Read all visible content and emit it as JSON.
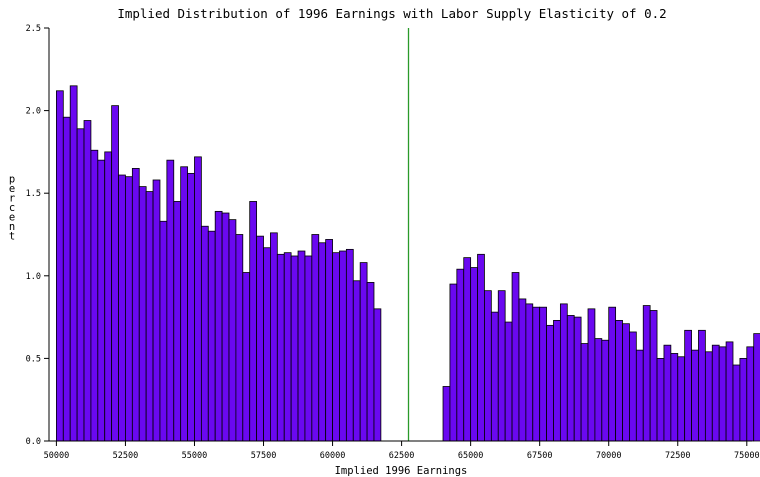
{
  "chart_data": {
    "type": "bar",
    "title": "Implied Distribution of 1996 Earnings with Labor Supply Elasticity of 0.2",
    "xlabel": "Implied 1996 Earnings",
    "ylabel": "percent",
    "xlim": [
      50000,
      75000
    ],
    "ylim": [
      0,
      2.5
    ],
    "bin_width": 250,
    "bin_start": 50000,
    "x_ticks": [
      "50000",
      "52500",
      "55000",
      "57500",
      "60000",
      "62500",
      "65000",
      "67500",
      "70000",
      "72500",
      "75000"
    ],
    "y_ticks": [
      "0.0",
      "0.5",
      "1.0",
      "1.5",
      "2.0",
      "2.5"
    ],
    "reference_line_x": 62750,
    "reference_line_color": "#2a9a2a",
    "bar_color": "#6a08f0",
    "values": [
      2.12,
      1.96,
      2.15,
      1.89,
      1.94,
      1.76,
      1.7,
      1.75,
      2.03,
      1.61,
      1.6,
      1.65,
      1.54,
      1.51,
      1.58,
      1.33,
      1.7,
      1.45,
      1.66,
      1.62,
      1.72,
      1.3,
      1.27,
      1.39,
      1.38,
      1.34,
      1.25,
      1.02,
      1.45,
      1.24,
      1.17,
      1.26,
      1.13,
      1.14,
      1.12,
      1.15,
      1.12,
      1.25,
      1.2,
      1.22,
      1.14,
      1.15,
      1.16,
      0.97,
      1.08,
      0.96,
      0.8,
      0,
      0,
      0,
      0,
      0,
      0,
      0,
      0,
      0,
      0.33,
      0.95,
      1.04,
      1.11,
      1.05,
      1.13,
      0.91,
      0.78,
      0.91,
      0.72,
      1.02,
      0.86,
      0.83,
      0.81,
      0.81,
      0.7,
      0.73,
      0.83,
      0.76,
      0.75,
      0.59,
      0.8,
      0.62,
      0.61,
      0.81,
      0.73,
      0.71,
      0.66,
      0.55,
      0.82,
      0.79,
      0.5,
      0.58,
      0.53,
      0.51,
      0.67,
      0.55,
      0.67,
      0.54,
      0.58,
      0.57,
      0.6,
      0.46,
      0.5,
      0.57,
      0.65
    ]
  }
}
